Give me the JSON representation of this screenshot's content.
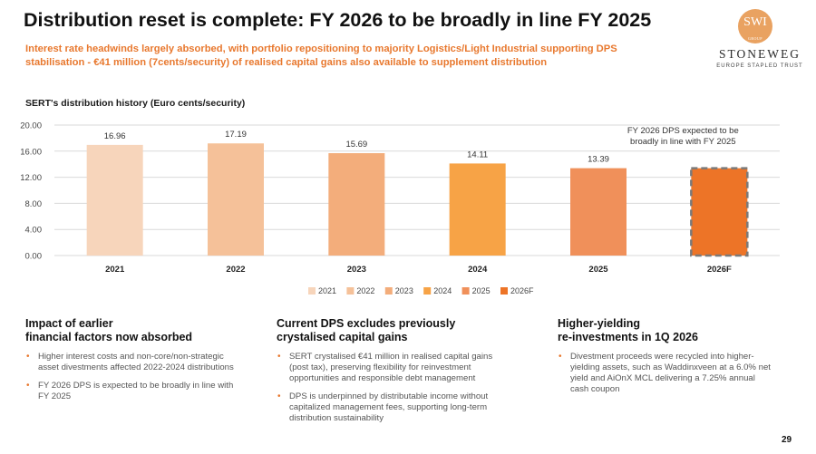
{
  "header": {
    "title": "Distribution reset is complete: FY 2026 to be broadly in line FY 2025",
    "subtitle": "Interest rate headwinds largely absorbed, with portfolio repositioning to majority Logistics/Light Industrial supporting DPS stabilisation - €41 million (7cents/security) of realised capital gains also available to supplement distribution"
  },
  "logo": {
    "mark": "SWI",
    "mark_small": "GROUP",
    "name": "STONEWEG",
    "tagline": "EUROPE STAPLED TRUST"
  },
  "chart_label": "SERT's distribution history (Euro cents/security)",
  "chart_data": {
    "type": "bar",
    "categories": [
      "2021",
      "2022",
      "2023",
      "2024",
      "2025",
      "2026F"
    ],
    "values": [
      16.96,
      17.19,
      15.69,
      14.11,
      13.39,
      13.39
    ],
    "value_labels": [
      "16.96",
      "17.19",
      "15.69",
      "14.11",
      "13.39",
      ""
    ],
    "colors": [
      "#f7d5bb",
      "#f5c199",
      "#f3ad7b",
      "#f7a346",
      "#f0905a",
      "#ed7427"
    ],
    "forecast_outline_color": "#7a7a7a",
    "yticks": [
      "0.00",
      "4.00",
      "8.00",
      "12.00",
      "16.00",
      "20.00"
    ],
    "ylim": [
      0,
      20
    ],
    "grid": true,
    "legend_position": "bottom",
    "legend": [
      "2021",
      "2022",
      "2023",
      "2024",
      "2025",
      "2026F"
    ],
    "annotation_lines": [
      "FY 2026 DPS expected to be",
      "broadly in line with FY 2025"
    ]
  },
  "columns": [
    {
      "heading_lines": [
        "Impact of earlier",
        "financial factors now absorbed"
      ],
      "bullets": [
        "Higher interest costs and non-core/non-strategic asset divestments affected 2022-2024 distributions",
        "FY 2026 DPS is expected to be broadly in line with FY 2025"
      ]
    },
    {
      "heading_lines": [
        "Current DPS excludes previously",
        "crystalised capital gains"
      ],
      "bullets": [
        "SERT crystalised €41 million in realised capital gains (post tax), preserving flexibility for reinvestment opportunities and responsible debt management",
        "DPS is underpinned by distributable income without capitalized management fees, supporting long-term distribution sustainability"
      ]
    },
    {
      "heading_lines": [
        "Higher-yielding",
        "re-investments in 1Q 2026"
      ],
      "bullets": [
        "Divestment proceeds were recycled into higher-yielding assets, such as Waddinxveen at a 6.0% net yield and AiOnX MCL delivering a 7.25% annual cash coupon"
      ]
    }
  ],
  "page_number": "29"
}
